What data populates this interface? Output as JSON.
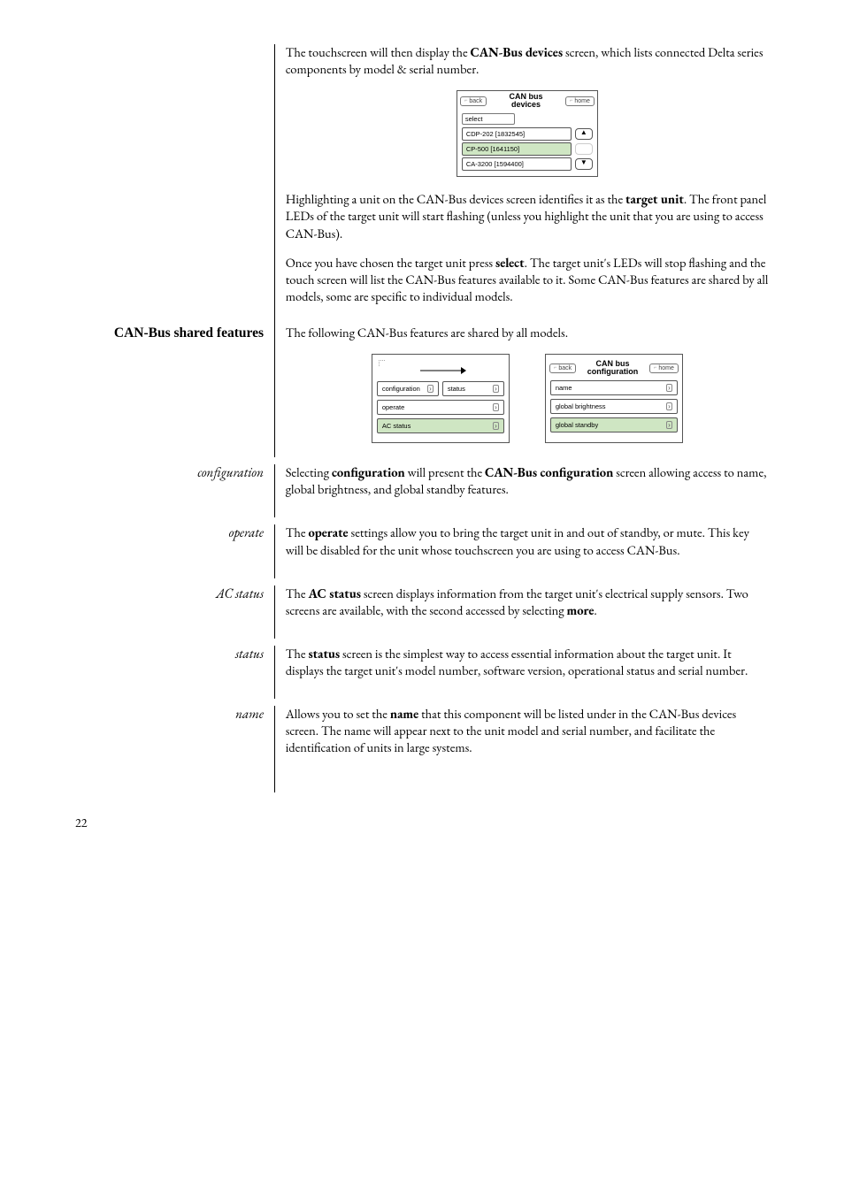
{
  "intro1": "The touchscreen will then display the <strong>CAN-Bus devices</strong> screen, which lists connected Delta series components by model & serial number.",
  "devices_panel": {
    "back": "back",
    "home": "home",
    "title_line1": "CAN bus",
    "title_line2": "devices",
    "select": "select",
    "items": [
      "CDP-202 [1832545]",
      "CP-500 [1641150]",
      "CA-3200 [1594400]"
    ],
    "selected_index": 1
  },
  "intro2": "Highlighting a unit on the CAN-Bus devices screen identifies it as the <strong>target unit</strong>. The front panel LEDs of the target unit will start flashing (unless you highlight the unit that you are using to access CAN-Bus).",
  "intro3": "Once you have chosen the target unit press <strong>select</strong>. The target unit's LEDs will stop flashing and the touch screen will list the CAN-Bus features available to it. Some CAN-Bus features are shared by all models, some are specific to individual models.",
  "shared_heading": "CAN-Bus shared features",
  "shared_intro": "The following CAN-Bus features are shared by all models.",
  "menu_left": {
    "items": [
      "configuration",
      "status",
      "operate",
      "AC status"
    ],
    "selected_index": 3
  },
  "menu_right": {
    "back": "back",
    "home": "home",
    "title_line1": "CAN bus",
    "title_line2": "configuration",
    "items": [
      "name",
      "global brightness",
      "global standby"
    ],
    "selected_index": 2
  },
  "sections": [
    {
      "label": "configuration",
      "text": "Selecting <strong>configuration</strong> will present the <strong>CAN-Bus configuration</strong> screen allowing access to name, global brightness, and global standby features."
    },
    {
      "label": "operate",
      "text": "The <strong>operate</strong> settings allow you to bring the target unit in and out of standby, or mute. This key will be disabled for the unit whose touchscreen you are using to access CAN-Bus."
    },
    {
      "label": "AC status",
      "text": "The <strong>AC status</strong> screen displays information from the target unit's electrical supply sensors. Two screens are available, with the second accessed by selecting <strong>more</strong>."
    },
    {
      "label": "status",
      "text": "The <strong>status</strong> screen is the simplest way to access essential information about the target unit. It displays the target unit's model number, software version, operational status and serial number."
    },
    {
      "label": "name",
      "text": "Allows you to set the <strong>name</strong> that this component will be listed under in the CAN-Bus devices screen. The name will appear next to the unit model and serial number, and facilitate the identification of units in large systems."
    }
  ],
  "page_number": "22"
}
